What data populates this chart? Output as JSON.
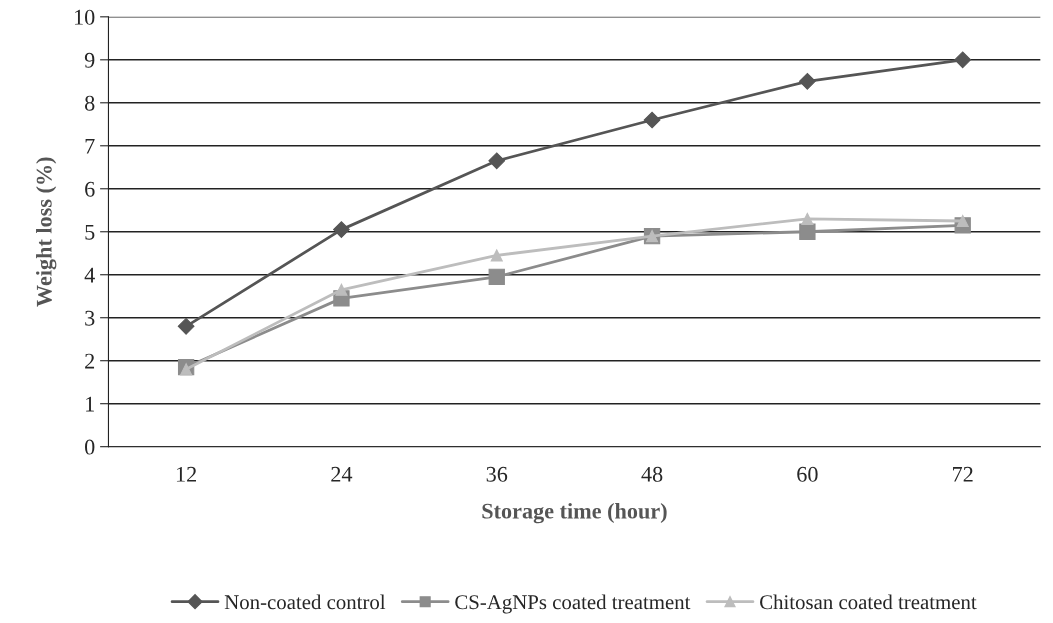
{
  "chart_data": {
    "type": "line",
    "xlabel": "Storage time (hour)",
    "ylabel": "Weight loss (%)",
    "categories": [
      "12",
      "24",
      "36",
      "48",
      "60",
      "72"
    ],
    "series": [
      {
        "name": "Non-coated control",
        "color": "#555555",
        "marker": "diamond",
        "values": [
          2.8,
          5.05,
          6.65,
          7.6,
          8.5,
          9.0
        ]
      },
      {
        "name": "CS-AgNPs coated treatment",
        "color": "#8c8c8c",
        "marker": "square",
        "values": [
          1.85,
          3.45,
          3.95,
          4.9,
          5.0,
          5.15
        ]
      },
      {
        "name": "Chitosan coated treatment",
        "color": "#bdbdbd",
        "marker": "triangle",
        "values": [
          1.8,
          3.65,
          4.45,
          4.9,
          5.3,
          5.25
        ]
      }
    ],
    "ylim": [
      0,
      10
    ],
    "yticks": [
      0,
      1,
      2,
      3,
      4,
      5,
      6,
      7,
      8,
      9,
      10
    ],
    "grid": "y",
    "legend": "bottom"
  }
}
